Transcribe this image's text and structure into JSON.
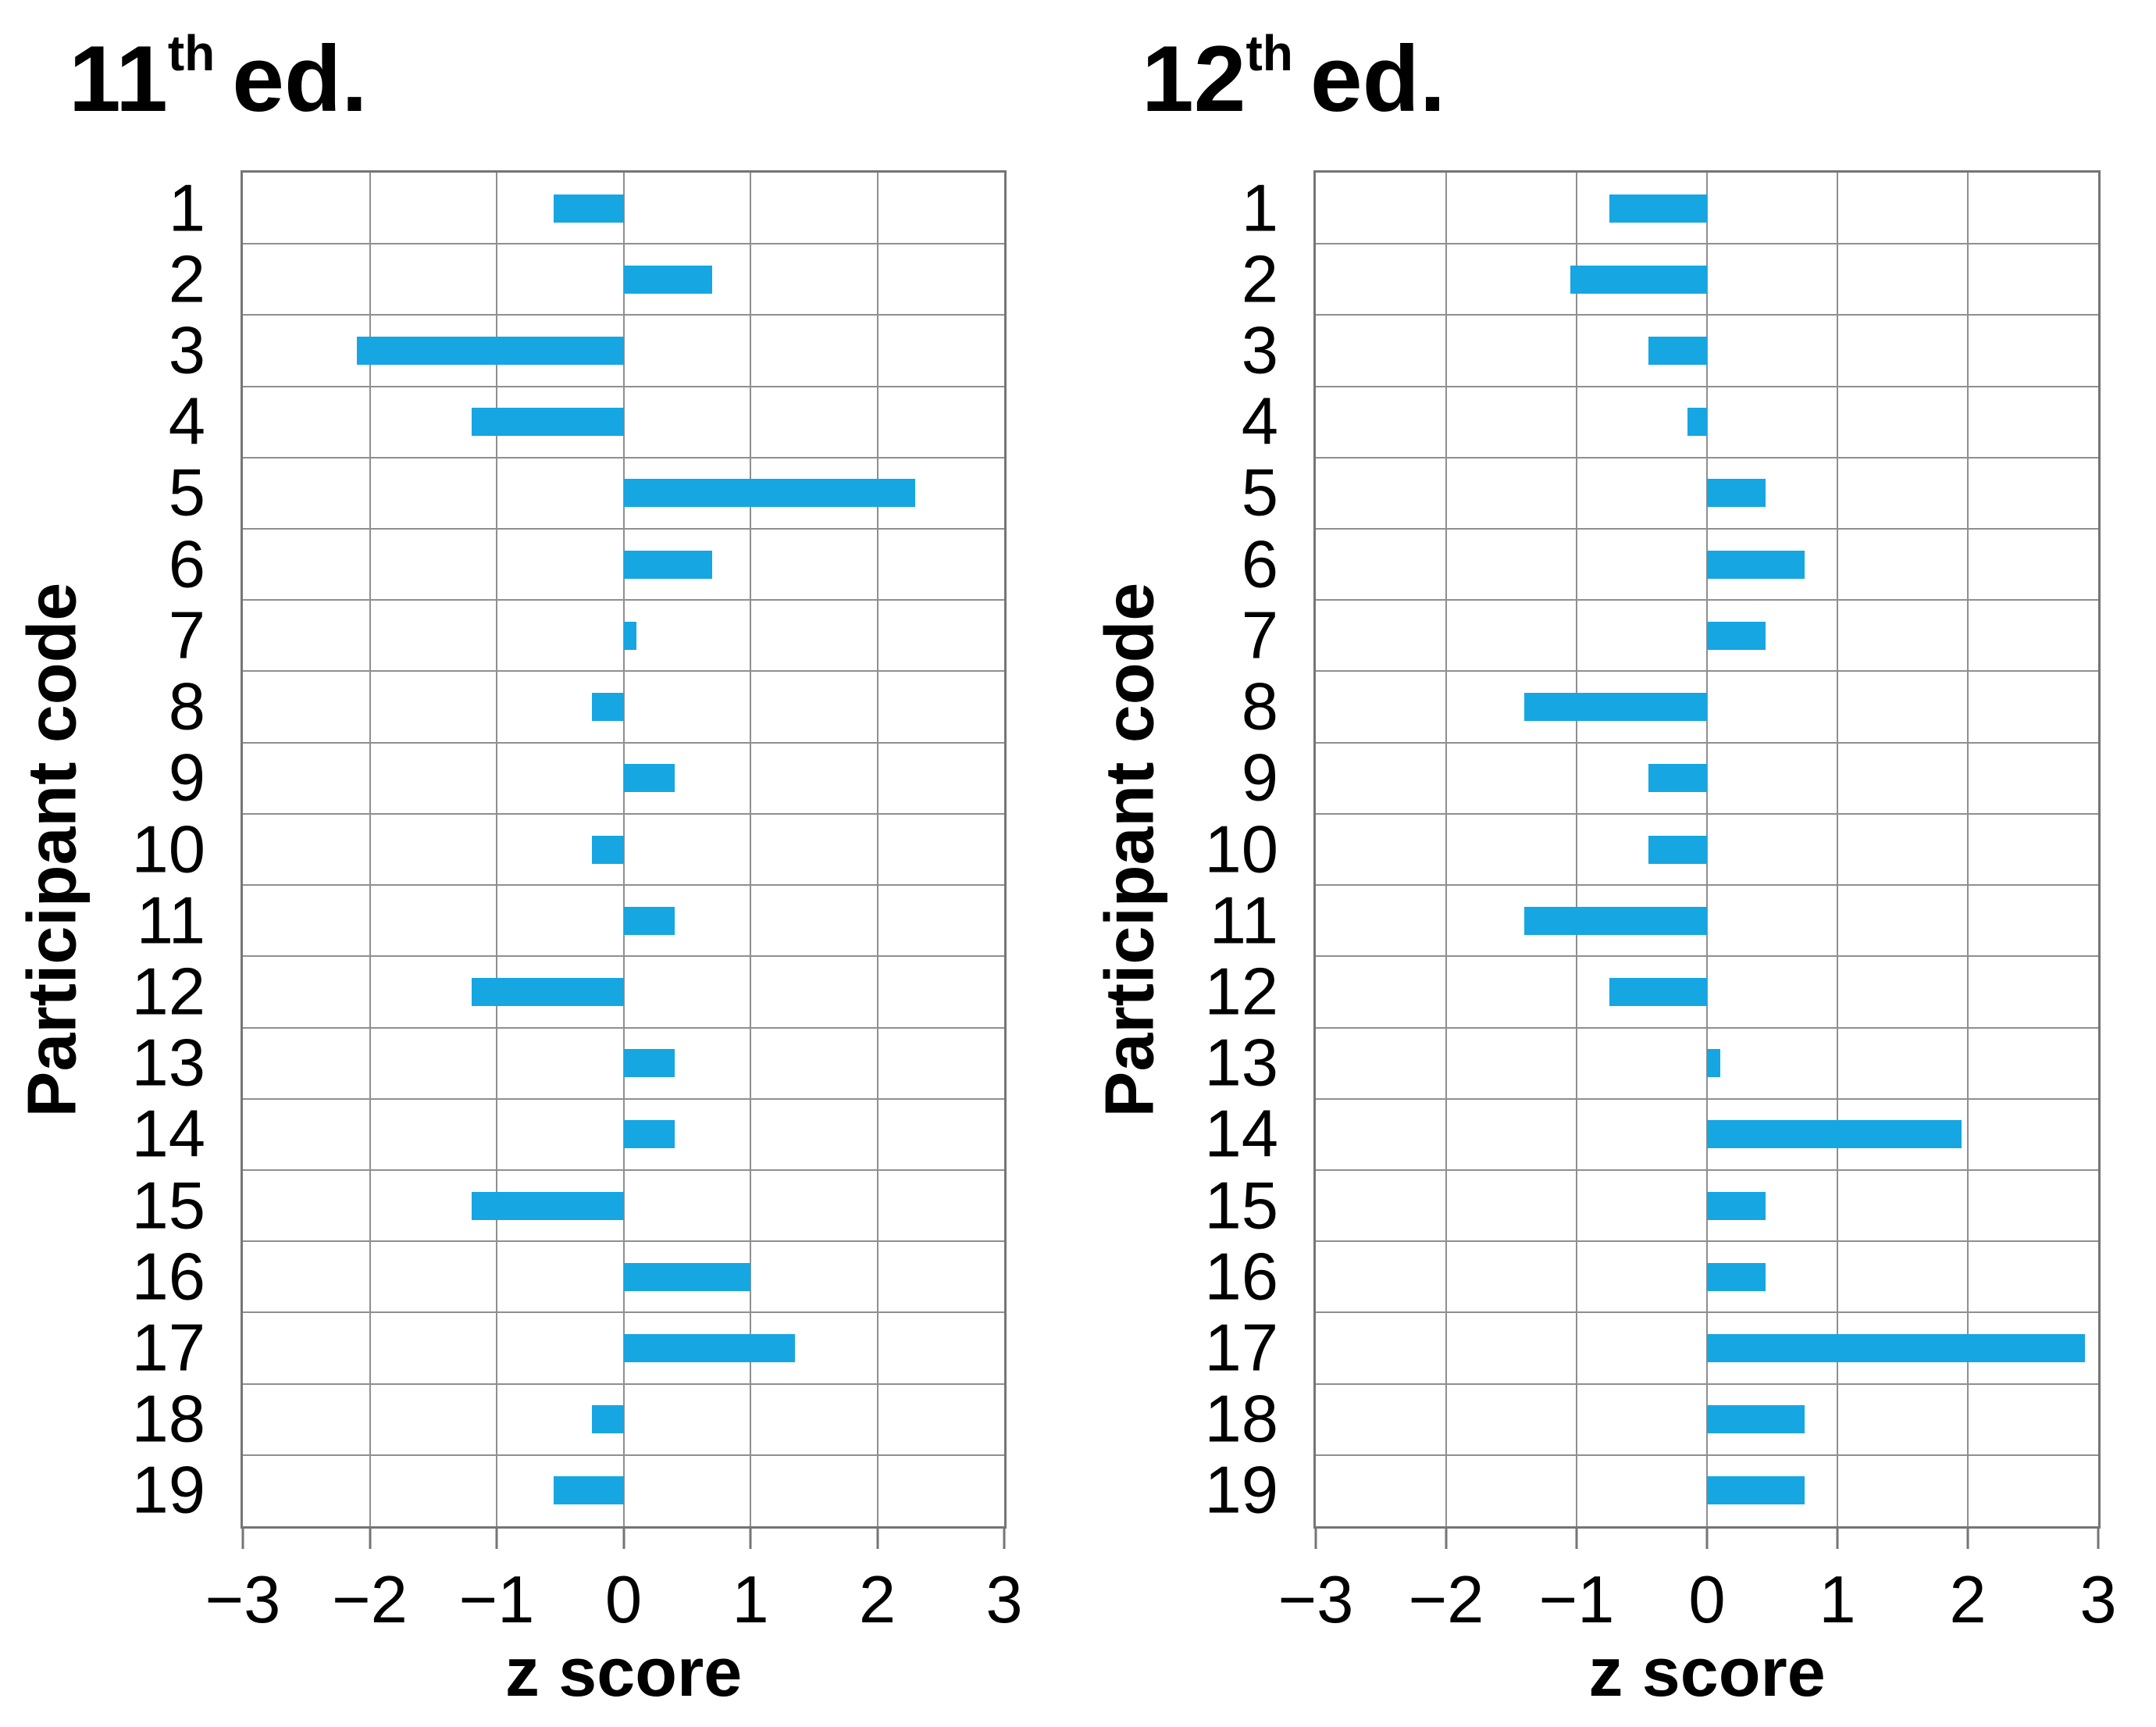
{
  "figure": {
    "background": "#ffffff",
    "charts": [
      {
        "title_number": "11",
        "title_ordinal": "th",
        "title_suffix": "ed.",
        "x_axis_label": "z score",
        "y_axis_label": "Participant code"
      },
      {
        "title_number": "12",
        "title_ordinal": "th",
        "title_suffix": "ed.",
        "x_axis_label": "z score",
        "y_axis_label": "Participant code"
      }
    ]
  },
  "chart_data": [
    {
      "type": "bar",
      "orientation": "horizontal",
      "title": "11th ed.",
      "xlabel": "z score",
      "ylabel": "Participant code",
      "categories": [
        "1",
        "2",
        "3",
        "4",
        "5",
        "6",
        "7",
        "8",
        "9",
        "10",
        "11",
        "12",
        "13",
        "14",
        "15",
        "16",
        "17",
        "18",
        "19"
      ],
      "values": [
        -0.55,
        0.7,
        -2.1,
        -1.2,
        2.3,
        0.7,
        0.1,
        -0.25,
        0.4,
        -0.25,
        0.4,
        -1.2,
        0.4,
        0.4,
        -1.2,
        1.0,
        1.35,
        -0.25,
        -0.55
      ],
      "xlim": [
        -3,
        3
      ],
      "xticks": [
        -3,
        -2,
        -1,
        0,
        1,
        2,
        3
      ],
      "xtick_labels": [
        "−3",
        "−2",
        "−1",
        "0",
        "1",
        "2",
        "3"
      ],
      "grid": true,
      "legend": false,
      "bar_color": "#16a6e2"
    },
    {
      "type": "bar",
      "orientation": "horizontal",
      "title": "12th ed.",
      "xlabel": "z score",
      "ylabel": "Participant code",
      "categories": [
        "1",
        "2",
        "3",
        "4",
        "5",
        "6",
        "7",
        "8",
        "9",
        "10",
        "11",
        "12",
        "13",
        "14",
        "15",
        "16",
        "17",
        "18",
        "19"
      ],
      "values": [
        -0.75,
        -1.05,
        -0.45,
        -0.15,
        0.45,
        0.75,
        0.45,
        -1.4,
        -0.45,
        -0.45,
        -1.4,
        -0.75,
        0.1,
        1.95,
        0.45,
        0.45,
        2.9,
        0.75,
        0.75
      ],
      "xlim": [
        -3,
        3
      ],
      "xticks": [
        -3,
        -2,
        -1,
        0,
        1,
        2,
        3
      ],
      "xtick_labels": [
        "−3",
        "−2",
        "−1",
        "0",
        "1",
        "2",
        "3"
      ],
      "grid": true,
      "legend": false,
      "bar_color": "#16a6e2"
    }
  ]
}
